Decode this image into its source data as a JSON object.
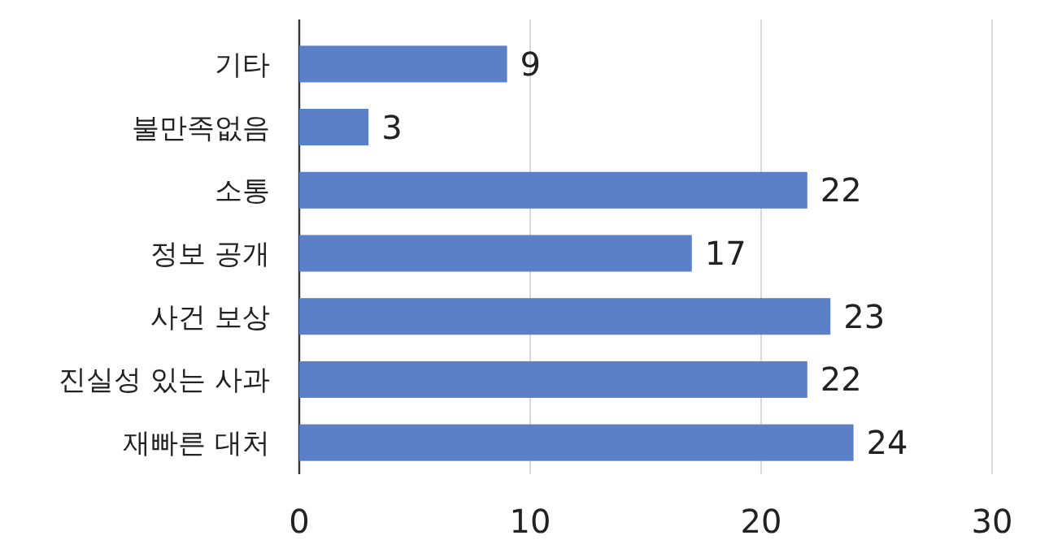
{
  "chart_data": {
    "type": "bar",
    "orientation": "horizontal",
    "categories": [
      "기타",
      "불만족없음",
      "소통",
      "정보 공개",
      "사건 보상",
      "진실성 있는 사과",
      "재빠른 대처"
    ],
    "values": [
      9,
      3,
      22,
      17,
      23,
      22,
      24
    ],
    "color": "#5b80c8",
    "xlim": [
      0,
      30
    ],
    "xticks": [
      0,
      10,
      20,
      30
    ],
    "grid": "x",
    "data_labels": true
  }
}
